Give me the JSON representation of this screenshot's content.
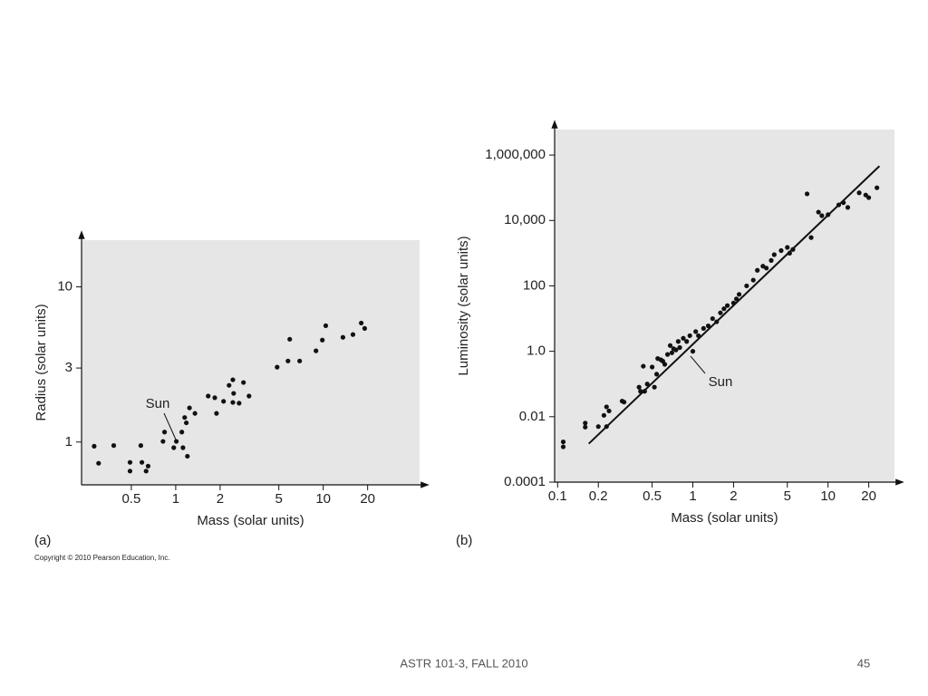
{
  "chart_data": [
    {
      "type": "scatter",
      "log_x": true,
      "log_y": true,
      "x_label": "Mass (solar units)",
      "y_label": "Radius (solar units)",
      "panel": "(a)",
      "annotation": "Sun",
      "color": "#111111",
      "xlim": [
        0.23,
        45
      ],
      "ylim": [
        0.53,
        20
      ],
      "xticks": [
        0.5,
        1,
        2,
        5,
        10,
        20
      ],
      "yticks": [
        1,
        3,
        10
      ],
      "x": [
        0.28,
        0.3,
        0.38,
        0.49,
        0.49,
        0.58,
        0.59,
        0.63,
        0.65,
        0.82,
        0.84,
        0.97,
        1.01,
        1.1,
        1.12,
        1.15,
        1.18,
        1.2,
        1.24,
        1.35,
        1.66,
        1.84,
        1.89,
        2.11,
        2.3,
        2.44,
        2.47,
        2.44,
        2.69,
        2.88,
        3.14,
        4.87,
        5.77,
        5.93,
        6.92,
        8.93,
        9.86,
        10.4,
        13.6,
        15.9,
        18.1,
        19.1
      ],
      "values": [
        0.94,
        0.73,
        0.95,
        0.74,
        0.65,
        0.95,
        0.74,
        0.65,
        0.7,
        1.01,
        1.16,
        0.92,
        1.01,
        1.16,
        0.92,
        1.44,
        1.33,
        0.81,
        1.66,
        1.53,
        1.98,
        1.93,
        1.53,
        1.83,
        2.32,
        2.52,
        2.06,
        1.8,
        1.78,
        2.42,
        1.98,
        3.04,
        3.33,
        4.6,
        3.33,
        3.87,
        4.54,
        5.62,
        4.73,
        4.93,
        5.85,
        5.4
      ]
    },
    {
      "type": "scatter",
      "log_x": true,
      "log_y": true,
      "x_label": "Mass (solar units)",
      "y_label": "Luminosity (solar units)",
      "panel": "(b)",
      "annotation": "Sun",
      "color": "#111111",
      "xlim": [
        0.095,
        31
      ],
      "ylim": [
        0.0001,
        6000000
      ],
      "xticks": [
        0.1,
        0.2,
        0.5,
        1,
        2,
        5,
        10,
        20
      ],
      "yticks": [
        0.0001,
        0.01,
        {
          "value": 1,
          "label": "1.0"
        },
        100,
        {
          "value": 10000,
          "label": "10,000"
        },
        {
          "value": 1000000,
          "label": "1,000,000"
        }
      ],
      "fit_line": {
        "x": [
          0.17,
          24
        ],
        "y": [
          0.0015,
          460000
        ]
      },
      "x": [
        0.11,
        0.11,
        0.16,
        0.16,
        0.2,
        0.22,
        0.23,
        0.24,
        0.23,
        0.3,
        0.31,
        0.4,
        0.41,
        0.43,
        0.44,
        0.46,
        0.5,
        0.52,
        0.54,
        0.55,
        0.58,
        0.6,
        0.62,
        0.65,
        0.68,
        0.7,
        0.72,
        0.75,
        0.78,
        0.8,
        0.85,
        0.9,
        0.95,
        1.0,
        1.05,
        1.1,
        1.2,
        1.3,
        1.4,
        1.5,
        1.6,
        1.7,
        1.8,
        2.0,
        2.1,
        2.2,
        2.5,
        2.8,
        3.0,
        3.3,
        3.5,
        3.8,
        4.0,
        4.5,
        5.0,
        5.2,
        5.5,
        7.0,
        7.5,
        8.5,
        9.0,
        10,
        12,
        13,
        14,
        17,
        19,
        20,
        23
      ],
      "values": [
        0.0017,
        0.0012,
        0.0064,
        0.0048,
        0.005,
        0.011,
        0.02,
        0.015,
        0.005,
        0.03,
        0.028,
        0.08,
        0.06,
        0.35,
        0.06,
        0.1,
        0.33,
        0.08,
        0.2,
        0.6,
        0.55,
        0.5,
        0.4,
        0.8,
        1.5,
        0.9,
        1.2,
        1.1,
        2,
        1.3,
        2.5,
        2,
        3,
        1.0,
        4,
        3,
        5,
        6,
        10,
        8,
        15,
        20,
        25,
        30,
        40,
        55,
        100,
        150,
        300,
        400,
        350,
        600,
        900,
        1200,
        1500,
        1000,
        1300,
        65000,
        3000,
        18000,
        14000,
        15000,
        30000,
        35000,
        25000,
        70000,
        60000,
        50000,
        100000
      ]
    }
  ],
  "copyright": "Copyright © 2010 Pearson Education, Inc.",
  "footer": {
    "course": "ASTR 101-3, FALL 2010",
    "page": "45"
  }
}
